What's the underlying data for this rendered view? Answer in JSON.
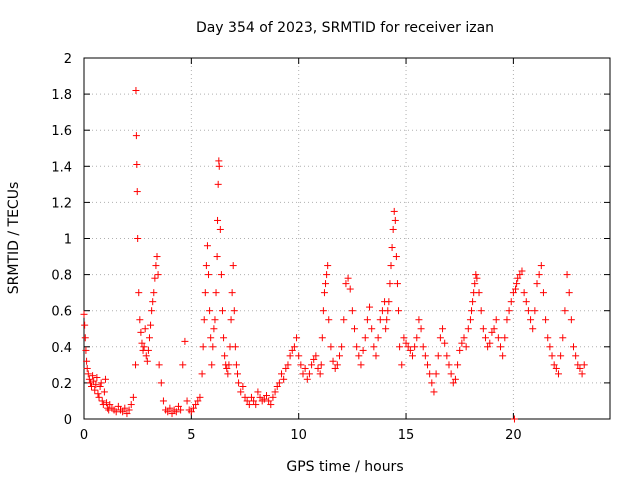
{
  "chart_data": {
    "type": "scatter",
    "title": "Day 354 of 2023, SRMTID for receiver izan",
    "xlabel": "GPS time / hours",
    "ylabel": "SRMTID / TECUs",
    "xlim": [
      0,
      24.5
    ],
    "ylim": [
      0,
      2
    ],
    "xticks": [
      0,
      5,
      10,
      15,
      20
    ],
    "xtick_labels": [
      "0",
      "5",
      "10",
      "15",
      "20"
    ],
    "yticks": [
      0,
      0.2,
      0.4,
      0.6,
      0.8,
      1,
      1.2,
      1.4,
      1.6,
      1.8,
      2
    ],
    "ytick_labels": [
      "0",
      "0.2",
      "0.4",
      "0.6",
      "0.8",
      "1",
      "1.2",
      "1.4",
      "1.6",
      "1.8",
      "2"
    ],
    "grid": true,
    "marker": "plus",
    "colors": {
      "marker": "#ff0000",
      "axis": "#000000",
      "grid": "#b0b0b0"
    },
    "series": [
      {
        "name": "SRMTID",
        "x": [
          0.0,
          0.03,
          0.06,
          0.09,
          0.12,
          0.15,
          0.2,
          0.25,
          0.3,
          0.35,
          0.4,
          0.45,
          0.5,
          0.55,
          0.6,
          0.65,
          0.7,
          0.75,
          0.8,
          0.85,
          0.9,
          0.95,
          1.0,
          1.05,
          1.1,
          1.15,
          1.2,
          1.3,
          1.4,
          1.5,
          1.6,
          1.7,
          1.8,
          1.9,
          2.0,
          2.1,
          2.2,
          2.3,
          2.4,
          2.42,
          2.44,
          2.46,
          2.48,
          2.5,
          2.55,
          2.6,
          2.65,
          2.7,
          2.75,
          2.8,
          2.85,
          2.9,
          2.95,
          3.0,
          3.05,
          3.1,
          3.15,
          3.2,
          3.25,
          3.3,
          3.35,
          3.4,
          3.45,
          3.5,
          3.6,
          3.7,
          3.8,
          3.9,
          4.0,
          4.1,
          4.2,
          4.3,
          4.4,
          4.5,
          4.6,
          4.7,
          4.8,
          4.9,
          5.0,
          5.1,
          5.2,
          5.3,
          5.4,
          5.5,
          5.55,
          5.6,
          5.65,
          5.7,
          5.75,
          5.8,
          5.85,
          5.9,
          5.95,
          6.0,
          6.05,
          6.1,
          6.15,
          6.2,
          6.22,
          6.25,
          6.28,
          6.3,
          6.35,
          6.4,
          6.45,
          6.5,
          6.55,
          6.6,
          6.65,
          6.7,
          6.75,
          6.8,
          6.85,
          6.9,
          6.95,
          7.0,
          7.05,
          7.1,
          7.15,
          7.2,
          7.3,
          7.4,
          7.5,
          7.6,
          7.7,
          7.8,
          7.9,
          8.0,
          8.1,
          8.2,
          8.3,
          8.4,
          8.5,
          8.6,
          8.7,
          8.8,
          8.9,
          9.0,
          9.1,
          9.2,
          9.3,
          9.4,
          9.5,
          9.6,
          9.7,
          9.8,
          9.9,
          10.0,
          10.1,
          10.2,
          10.3,
          10.4,
          10.5,
          10.6,
          10.7,
          10.8,
          10.9,
          11.0,
          11.05,
          11.1,
          11.15,
          11.2,
          11.25,
          11.3,
          11.35,
          11.4,
          11.5,
          11.6,
          11.7,
          11.8,
          11.9,
          12.0,
          12.1,
          12.2,
          12.3,
          12.4,
          12.5,
          12.6,
          12.7,
          12.8,
          12.9,
          13.0,
          13.1,
          13.2,
          13.3,
          13.4,
          13.5,
          13.6,
          13.7,
          13.8,
          13.9,
          14.0,
          14.05,
          14.1,
          14.15,
          14.2,
          14.25,
          14.3,
          14.35,
          14.4,
          14.45,
          14.5,
          14.55,
          14.6,
          14.65,
          14.7,
          14.8,
          14.9,
          15.0,
          15.1,
          15.2,
          15.3,
          15.4,
          15.5,
          15.6,
          15.7,
          15.8,
          15.9,
          16.0,
          16.1,
          16.2,
          16.3,
          16.4,
          16.5,
          16.6,
          16.7,
          16.8,
          16.9,
          17.0,
          17.1,
          17.2,
          17.3,
          17.4,
          17.5,
          17.6,
          17.7,
          17.8,
          17.9,
          18.0,
          18.05,
          18.1,
          18.15,
          18.2,
          18.25,
          18.3,
          18.4,
          18.5,
          18.6,
          18.7,
          18.8,
          18.9,
          19.0,
          19.1,
          19.2,
          19.3,
          19.4,
          19.5,
          19.6,
          19.7,
          19.8,
          19.9,
          20.0,
          20.05,
          20.1,
          20.15,
          20.2,
          20.3,
          20.4,
          20.5,
          20.6,
          20.7,
          20.8,
          20.9,
          21.0,
          21.1,
          21.2,
          21.3,
          21.4,
          21.5,
          21.6,
          21.7,
          21.8,
          21.9,
          22.0,
          22.1,
          22.2,
          22.3,
          22.4,
          22.5,
          22.6,
          22.7,
          22.8,
          22.9,
          23.0,
          23.1,
          23.2,
          23.3
        ],
        "y": [
          0.58,
          0.52,
          0.45,
          0.38,
          0.32,
          0.28,
          0.25,
          0.22,
          0.2,
          0.18,
          0.24,
          0.21,
          0.16,
          0.19,
          0.23,
          0.14,
          0.12,
          0.18,
          0.2,
          0.1,
          0.08,
          0.15,
          0.22,
          0.09,
          0.06,
          0.05,
          0.08,
          0.06,
          0.05,
          0.04,
          0.07,
          0.05,
          0.04,
          0.06,
          0.03,
          0.05,
          0.08,
          0.12,
          0.3,
          1.82,
          1.57,
          1.41,
          1.26,
          1.0,
          0.7,
          0.55,
          0.48,
          0.42,
          0.38,
          0.4,
          0.5,
          0.35,
          0.32,
          0.38,
          0.45,
          0.52,
          0.6,
          0.65,
          0.7,
          0.78,
          0.85,
          0.9,
          0.8,
          0.3,
          0.2,
          0.1,
          0.05,
          0.04,
          0.06,
          0.03,
          0.05,
          0.04,
          0.07,
          0.05,
          0.3,
          0.43,
          0.1,
          0.05,
          0.04,
          0.06,
          0.08,
          0.1,
          0.12,
          0.25,
          0.4,
          0.55,
          0.7,
          0.85,
          0.96,
          0.8,
          0.6,
          0.45,
          0.3,
          0.4,
          0.5,
          0.55,
          0.7,
          0.9,
          1.1,
          1.3,
          1.43,
          1.4,
          1.05,
          0.8,
          0.6,
          0.45,
          0.35,
          0.3,
          0.28,
          0.25,
          0.3,
          0.4,
          0.55,
          0.7,
          0.85,
          0.6,
          0.4,
          0.3,
          0.25,
          0.2,
          0.15,
          0.18,
          0.12,
          0.1,
          0.08,
          0.12,
          0.1,
          0.08,
          0.15,
          0.12,
          0.1,
          0.11,
          0.13,
          0.1,
          0.08,
          0.12,
          0.15,
          0.18,
          0.2,
          0.25,
          0.22,
          0.28,
          0.3,
          0.35,
          0.38,
          0.4,
          0.45,
          0.35,
          0.3,
          0.25,
          0.28,
          0.22,
          0.25,
          0.3,
          0.33,
          0.35,
          0.28,
          0.25,
          0.3,
          0.45,
          0.6,
          0.7,
          0.75,
          0.8,
          0.85,
          0.55,
          0.4,
          0.32,
          0.28,
          0.3,
          0.35,
          0.4,
          0.55,
          0.75,
          0.78,
          0.72,
          0.6,
          0.5,
          0.4,
          0.35,
          0.3,
          0.38,
          0.45,
          0.55,
          0.62,
          0.5,
          0.4,
          0.35,
          0.45,
          0.55,
          0.6,
          0.65,
          0.5,
          0.55,
          0.6,
          0.65,
          0.75,
          0.85,
          0.95,
          1.05,
          1.15,
          1.1,
          0.9,
          0.75,
          0.6,
          0.4,
          0.3,
          0.45,
          0.42,
          0.4,
          0.38,
          0.35,
          0.4,
          0.45,
          0.55,
          0.5,
          0.4,
          0.35,
          0.3,
          0.25,
          0.2,
          0.15,
          0.25,
          0.35,
          0.45,
          0.5,
          0.42,
          0.35,
          0.3,
          0.25,
          0.2,
          0.22,
          0.3,
          0.38,
          0.42,
          0.45,
          0.4,
          0.5,
          0.55,
          0.6,
          0.65,
          0.7,
          0.75,
          0.8,
          0.78,
          0.7,
          0.6,
          0.5,
          0.45,
          0.4,
          0.42,
          0.48,
          0.5,
          0.55,
          0.45,
          0.4,
          0.35,
          0.45,
          0.55,
          0.6,
          0.65,
          0.7,
          0.0,
          0.72,
          0.75,
          0.78,
          0.8,
          0.82,
          0.7,
          0.65,
          0.6,
          0.55,
          0.5,
          0.6,
          0.75,
          0.8,
          0.85,
          0.7,
          0.55,
          0.45,
          0.4,
          0.35,
          0.3,
          0.28,
          0.25,
          0.35,
          0.45,
          0.6,
          0.8,
          0.7,
          0.55,
          0.4,
          0.35,
          0.3,
          0.28,
          0.25,
          0.3
        ]
      }
    ]
  }
}
